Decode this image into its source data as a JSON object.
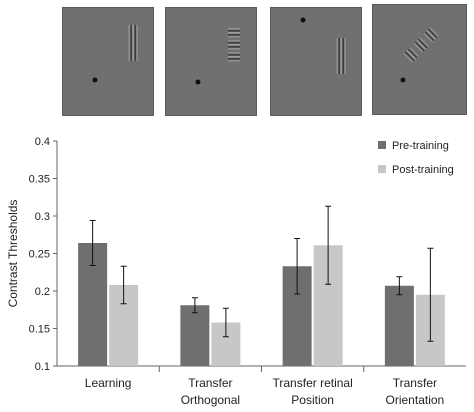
{
  "stimuli": [
    {
      "condition": "learning"
    },
    {
      "condition": "transfer-orthogonal"
    },
    {
      "condition": "transfer-retinal-position"
    },
    {
      "condition": "transfer-orientation"
    }
  ],
  "colors": {
    "pre": "#6e706e",
    "post": "#c6c8c6",
    "panel": "#6f716f"
  },
  "chart_data": {
    "type": "bar",
    "ylabel": "Contrast Thresholds",
    "ylim": [
      0.1,
      0.4
    ],
    "yticks": [
      "0.1",
      "0.15",
      "0.2",
      "0.25",
      "0.3",
      "0.35",
      "0.4"
    ],
    "legend_position": "top-right",
    "categories": [
      [
        "Learning"
      ],
      [
        "Transfer",
        "Orthogonal"
      ],
      [
        "Transfer retinal",
        "Position"
      ],
      [
        "Transfer",
        "Orientation"
      ]
    ],
    "series": [
      {
        "name": "Pre-training",
        "values": [
          0.264,
          0.181,
          0.233,
          0.207
        ],
        "errors": [
          0.03,
          0.01,
          0.037,
          0.012
        ]
      },
      {
        "name": "Post-training",
        "values": [
          0.208,
          0.158,
          0.261,
          0.195
        ],
        "errors": [
          0.025,
          0.019,
          0.052,
          0.062
        ]
      }
    ]
  }
}
